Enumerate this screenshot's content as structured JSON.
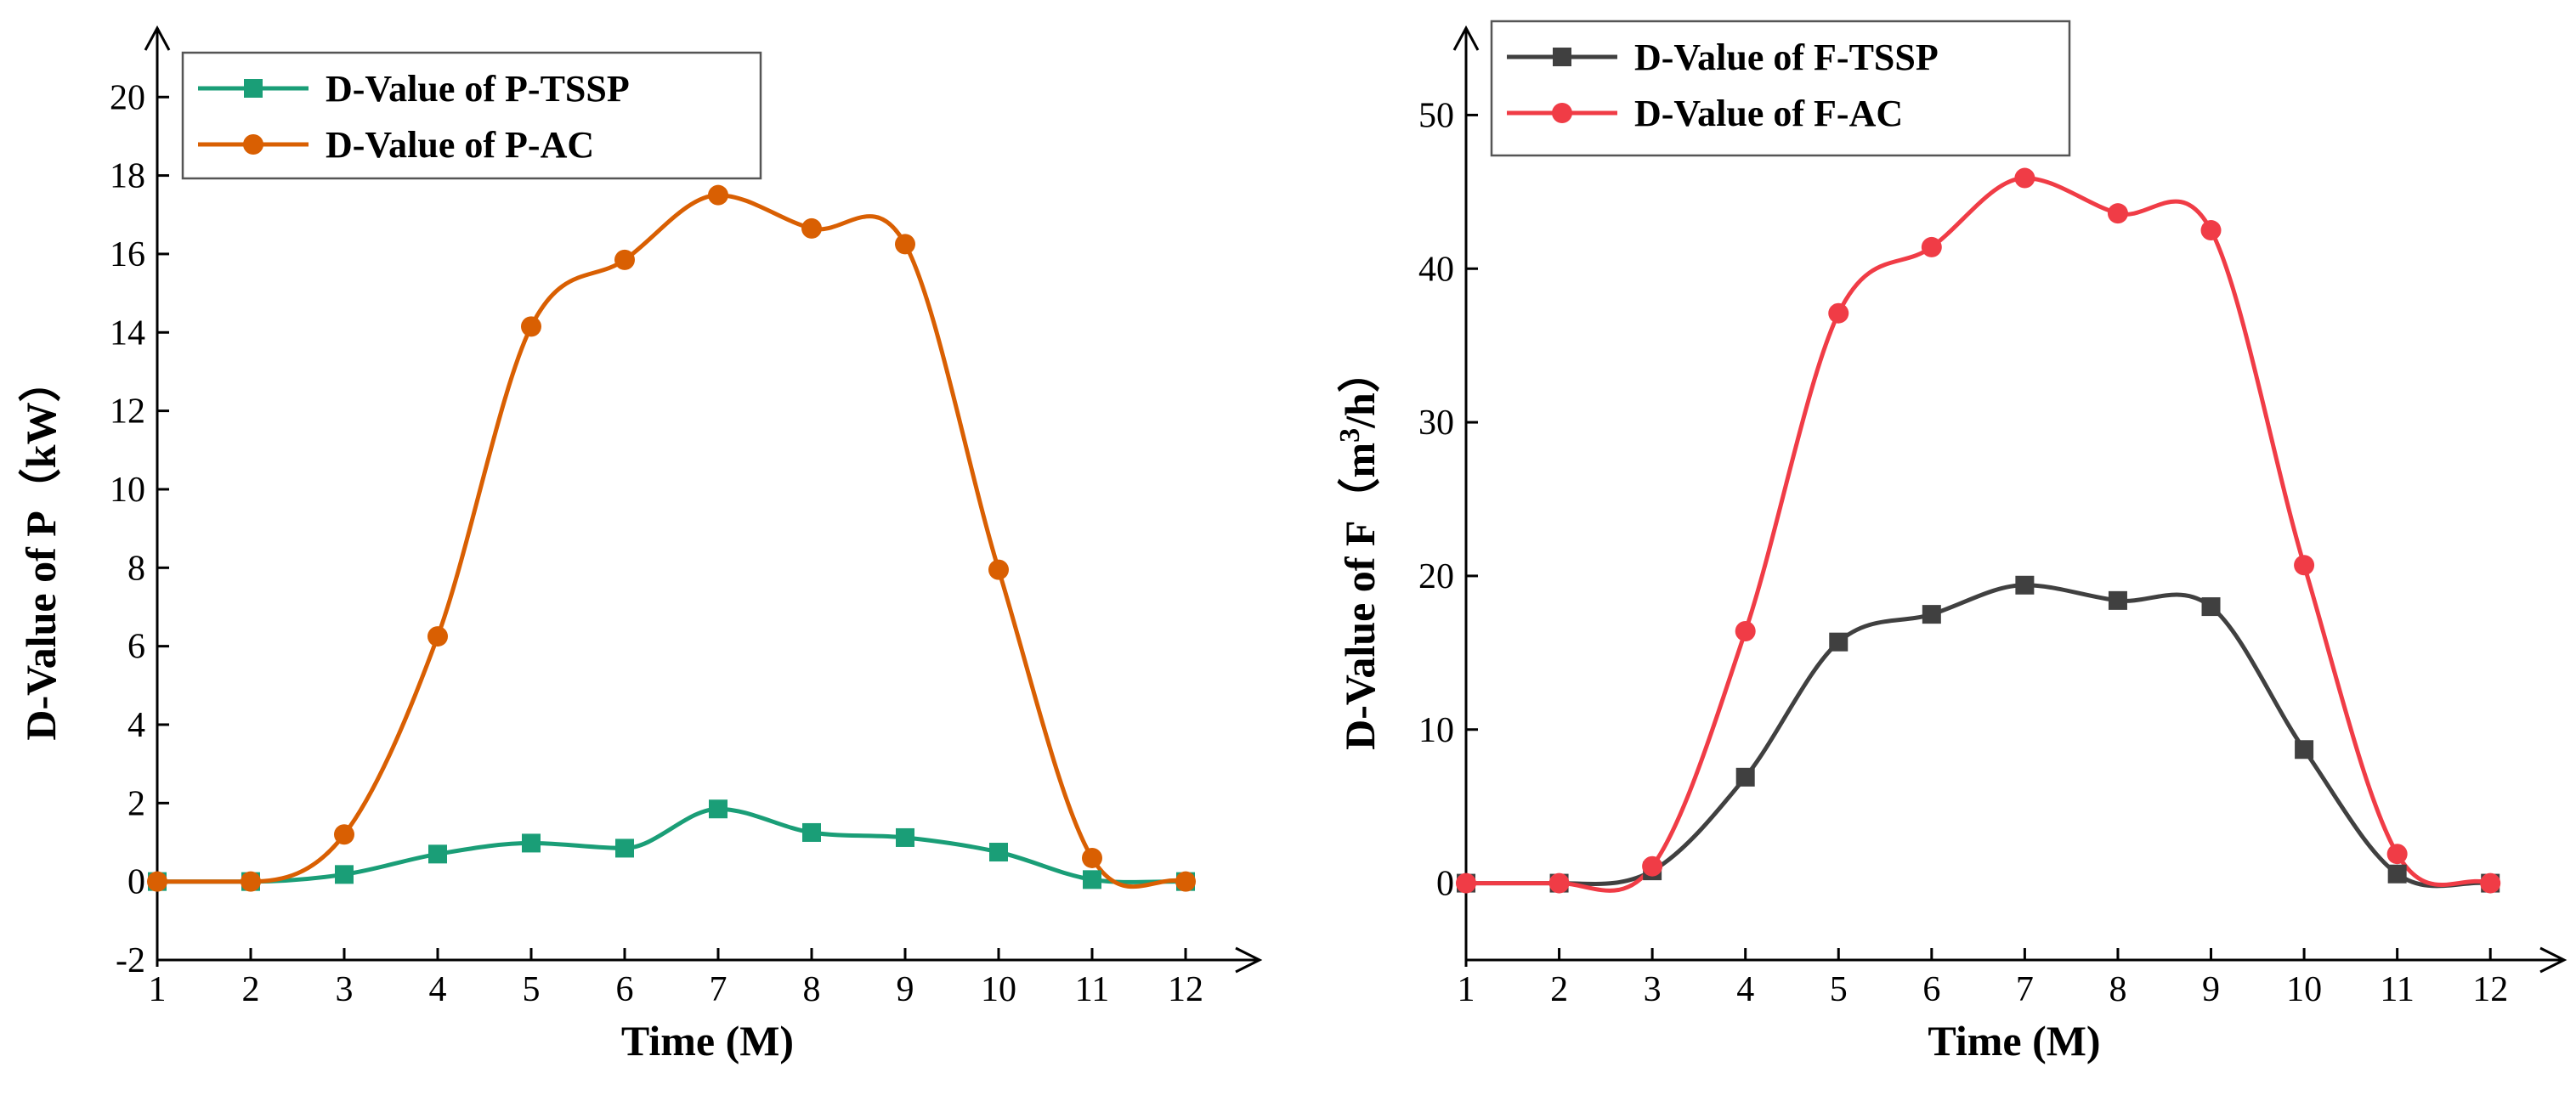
{
  "chart_data": [
    {
      "type": "line",
      "title": "",
      "xlabel": "Time (M)",
      "ylabel_main": "D-Value of P",
      "ylabel_unit": "（kW）",
      "x": [
        1,
        2,
        3,
        4,
        5,
        6,
        7,
        8,
        9,
        10,
        11,
        12
      ],
      "xlim": [
        1,
        12.5
      ],
      "ylim": [
        -2,
        21.5
      ],
      "xticks": [
        1,
        2,
        3,
        4,
        5,
        6,
        7,
        8,
        9,
        10,
        11,
        12
      ],
      "yticks": [
        -2,
        0,
        2,
        4,
        6,
        8,
        10,
        12,
        14,
        16,
        18,
        20
      ],
      "legend_position": "top-left",
      "series": [
        {
          "name": "D-Value of P-TSSP",
          "marker": "square",
          "color": "#1a9e77",
          "values": [
            0,
            0,
            0.18,
            0.7,
            0.98,
            0.85,
            1.85,
            1.25,
            1.12,
            0.75,
            0.05,
            0
          ]
        },
        {
          "name": "D-Value of P-AC",
          "marker": "circle",
          "color": "#d95f02",
          "values": [
            0,
            0,
            1.2,
            6.25,
            14.15,
            15.85,
            17.5,
            16.65,
            16.25,
            7.95,
            0.6,
            0
          ]
        }
      ]
    },
    {
      "type": "line",
      "title": "",
      "xlabel": "Time (M)",
      "ylabel_main": "D-Value of F",
      "ylabel_unit_pre": "（m",
      "ylabel_unit_sup": "3",
      "ylabel_unit_post": "/h）",
      "x": [
        1,
        2,
        3,
        4,
        5,
        6,
        7,
        8,
        9,
        10,
        11,
        12
      ],
      "xlim": [
        1,
        12.5
      ],
      "ylim": [
        -5,
        55
      ],
      "xticks": [
        1,
        2,
        3,
        4,
        5,
        6,
        7,
        8,
        9,
        10,
        11,
        12
      ],
      "yticks": [
        0,
        10,
        20,
        30,
        40,
        50
      ],
      "legend_position": "top-left",
      "series": [
        {
          "name": "D-Value of F-TSSP",
          "marker": "square",
          "color": "#404040",
          "values": [
            0,
            0,
            0.8,
            6.9,
            15.7,
            17.5,
            19.4,
            18.4,
            18.0,
            8.7,
            0.6,
            0
          ]
        },
        {
          "name": "D-Value of F-AC",
          "marker": "circle",
          "color": "#f03c46",
          "values": [
            0,
            0,
            1.1,
            16.4,
            37.1,
            41.4,
            45.9,
            43.6,
            42.5,
            20.7,
            1.9,
            0
          ]
        }
      ]
    }
  ]
}
